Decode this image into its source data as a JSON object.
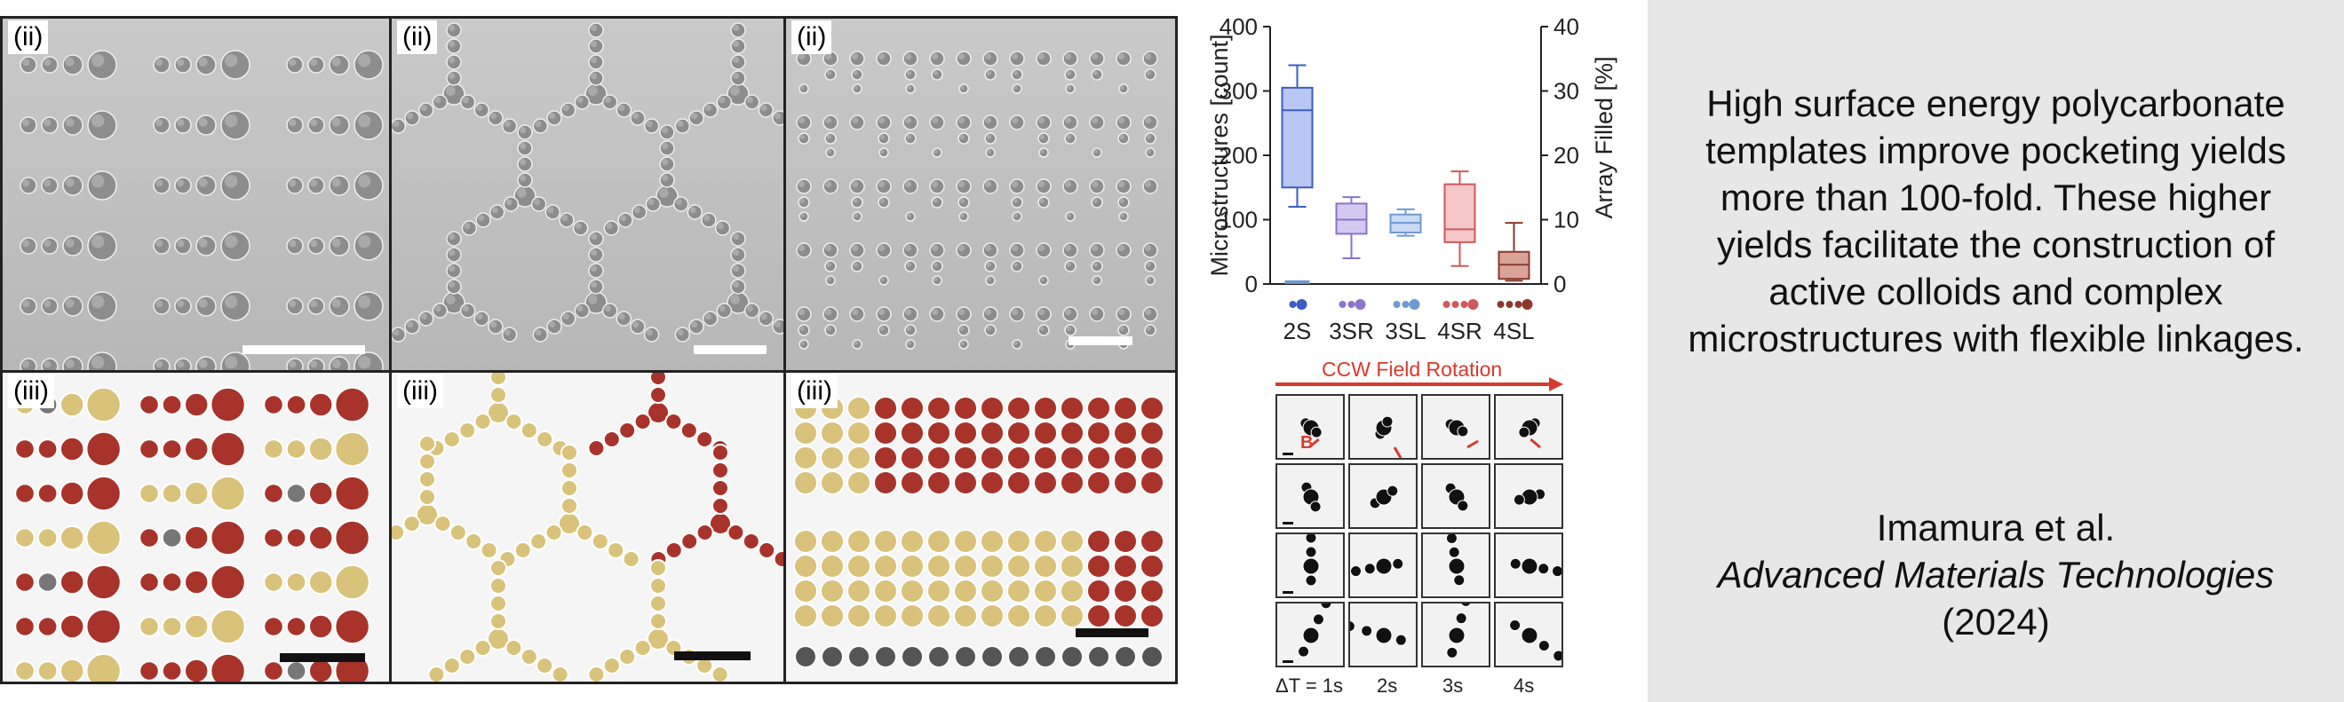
{
  "panels": {
    "top_labels": [
      "(ii)",
      "(ii)",
      "(ii)"
    ],
    "bottom_labels": [
      "(iii)",
      "(iii)",
      "(iii)"
    ]
  },
  "colors": {
    "red_particle": "#a8332a",
    "yellow_particle": "#d9c27a",
    "scale_bar_light": "#ffffff",
    "scale_bar_dark": "#111111",
    "arrow_red": "#d83a2e"
  },
  "chart_data": {
    "type": "box",
    "categories": [
      "2S",
      "3SR",
      "3SL",
      "4SR",
      "4SL"
    ],
    "left_axis": {
      "label": "Microstructures [count]",
      "ticks": [
        0,
        100,
        200,
        300,
        400
      ],
      "ylim": [
        0,
        400
      ]
    },
    "right_axis": {
      "label": "Array Filled [%]",
      "ticks": [
        0,
        10,
        20,
        30,
        40
      ],
      "ylim": [
        0,
        40
      ]
    },
    "series": [
      {
        "category": "2S",
        "color": "#3a5ec2",
        "fill": "#b9c8f2",
        "min": 120,
        "q1": 150,
        "median": 270,
        "q3": 305,
        "max": 340
      },
      {
        "category": "3SR",
        "color": "#8a74cc",
        "fill": "#d3c9f0",
        "min": 40,
        "q1": 78,
        "median": 100,
        "q3": 125,
        "max": 135
      },
      {
        "category": "3SL",
        "color": "#6f9ad4",
        "fill": "#c9dbf3",
        "min": 75,
        "q1": 80,
        "median": 95,
        "q3": 108,
        "max": 116
      },
      {
        "category": "4SR",
        "color": "#d0595c",
        "fill": "#f5c7c8",
        "min": 28,
        "q1": 65,
        "median": 85,
        "q3": 155,
        "max": 175
      },
      {
        "category": "4SL",
        "color": "#8a3a2c",
        "fill": "#d9a39a",
        "min": 5,
        "q1": 8,
        "median": 30,
        "q3": 50,
        "max": 95
      }
    ],
    "baseline_marker": {
      "category": "2S",
      "value": 3
    }
  },
  "rotation": {
    "title": "CCW Field Rotation",
    "field_label": "B",
    "times": [
      "ΔT = 1s",
      "2s",
      "3s",
      "4s"
    ]
  },
  "summary": "High surface energy polycarbonate templates improve pocketing yields more than 100-fold. These higher yields facilitate the construction of active colloids and complex microstructures with flexible linkages.",
  "citation": {
    "authors": "Imamura et al.",
    "journal": "Advanced Materials Technologies",
    "year": "(2024)"
  }
}
